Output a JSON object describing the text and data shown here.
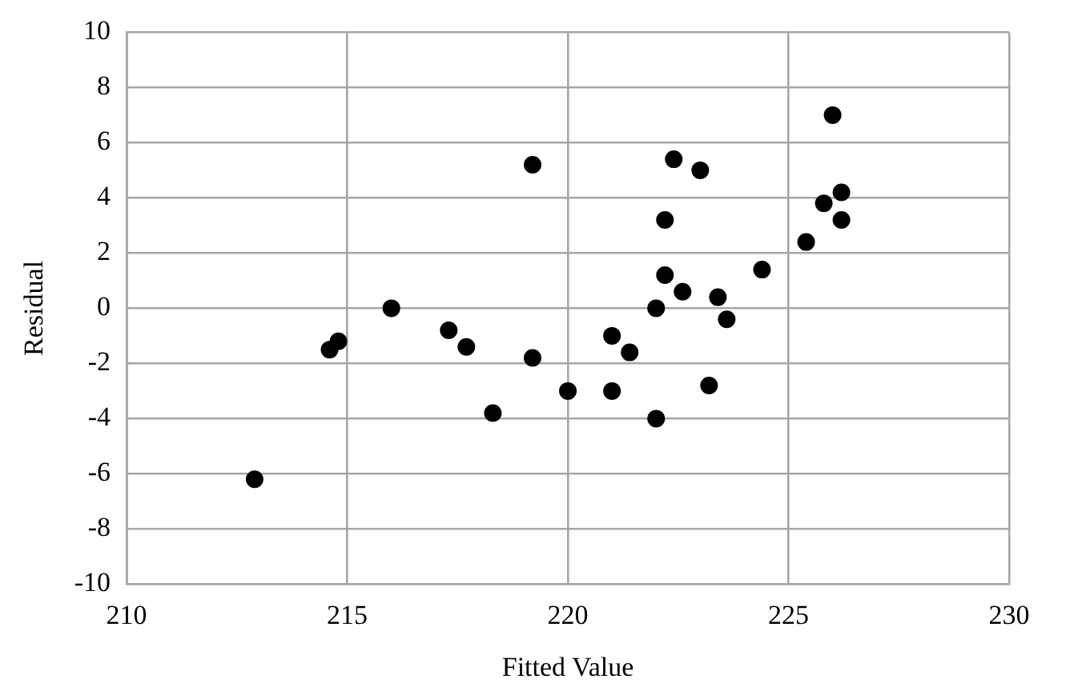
{
  "chart_data": {
    "type": "scatter",
    "xlabel": "Fitted Value",
    "ylabel": "Residual",
    "x": [
      212.9,
      214.6,
      214.8,
      216,
      217.3,
      217.7,
      218.3,
      219.2,
      219.2,
      220,
      221,
      221,
      221.4,
      222,
      222,
      222.2,
      222.2,
      222.4,
      222.6,
      223,
      223.2,
      223.4,
      223.6,
      224.4,
      225.4,
      225.8,
      226,
      226.2,
      226.2
    ],
    "series": [
      {
        "color": "#000000",
        "values": [
          -6.2,
          -1.5,
          -1.2,
          0,
          -0.8,
          -1.4,
          -3.8,
          5.2,
          -1.8,
          -3,
          -1,
          -3,
          -1.6,
          0,
          -4,
          1.2,
          3.2,
          5.4,
          0.6,
          5,
          -2.8,
          0.4,
          -0.4,
          1.4,
          2.4,
          3.8,
          7,
          4.2,
          3.2
        ]
      }
    ],
    "xlim": [
      210,
      230
    ],
    "xticks": [
      210,
      215,
      220,
      225,
      230
    ],
    "ylim": [
      -10,
      10
    ],
    "yticks": [
      -10,
      -8,
      -6,
      -4,
      -2,
      0,
      2,
      4,
      6,
      8,
      10
    ],
    "grid": true,
    "legend": false,
    "marker": "circle"
  }
}
